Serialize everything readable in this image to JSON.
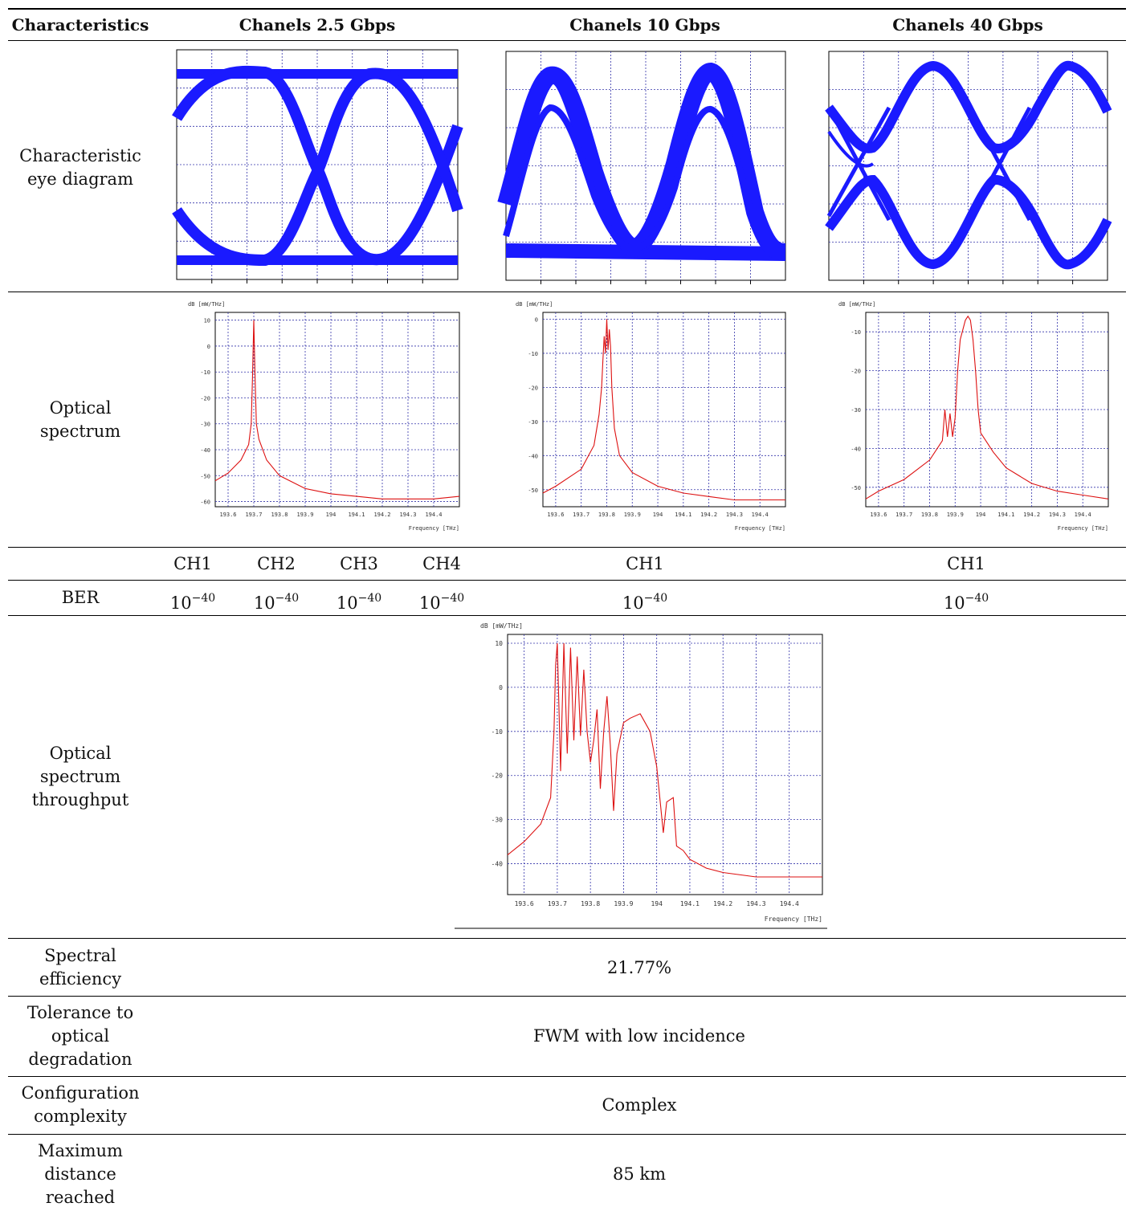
{
  "table": {
    "headers": {
      "characteristics": "Characteristics",
      "col_2_5": "Chanels 2.5 Gbps",
      "col_10": "Chanels 10 Gbps",
      "col_40": "Chanels 40 Gbps"
    },
    "rows": {
      "eye": "Characteristic\neye diagram",
      "spectrum": "Optical\nspectrum",
      "ber": "BER",
      "throughput": "Optical\nspectrum\nthroughput",
      "efficiency": "Spectral\nefficiency",
      "tolerance": "Tolerance to\noptical\ndegradation",
      "complexity": "Configuration\ncomplexity",
      "distance": "Maximum\ndistance\nreached"
    },
    "channels": [
      "CH1",
      "CH2",
      "CH3",
      "CH4",
      "CH1",
      "CH1"
    ],
    "ber_base": "10",
    "ber_exponent": "−40",
    "values": {
      "efficiency": "21.77%",
      "tolerance": "FWM with low incidence",
      "complexity": "Complex",
      "distance": "85 km"
    }
  },
  "colors": {
    "eye": "#1a1aff",
    "spectrum": "#dd1111",
    "grid": "#3333aa"
  },
  "chart_data": [
    {
      "type": "line",
      "name_key": "spec-2-5",
      "ylabel": "dB [mW/THz]",
      "xlabel": "Frequency [THz]",
      "xlim": [
        193.55,
        194.5
      ],
      "ylim": [
        -62,
        13
      ],
      "xticks": [
        "193.6",
        "193.7",
        "193.8",
        "193.9",
        "194",
        "194.1",
        "194.2",
        "194.3",
        "194.4"
      ],
      "xtick_values": [
        193.6,
        193.7,
        193.8,
        193.9,
        194.0,
        194.1,
        194.2,
        194.3,
        194.4
      ],
      "yticks": [
        "10",
        "0",
        "-10",
        "-20",
        "-30",
        "-40",
        "-50",
        "-60"
      ],
      "ytick_values": [
        10,
        0,
        -10,
        -20,
        -30,
        -40,
        -50,
        -60
      ],
      "x": [
        193.55,
        193.6,
        193.65,
        193.68,
        193.69,
        193.695,
        193.7,
        193.705,
        193.71,
        193.72,
        193.75,
        193.8,
        193.9,
        194.0,
        194.1,
        194.2,
        194.3,
        194.4,
        194.5
      ],
      "y": [
        -52,
        -49,
        -44,
        -38,
        -30,
        -12,
        10,
        -12,
        -30,
        -36,
        -44,
        -50,
        -55,
        -57,
        -58,
        -59,
        -59,
        -59,
        -58
      ]
    },
    {
      "type": "line",
      "name_key": "spec-10",
      "ylabel": "dB [mW/THz]",
      "xlabel": "Frequency [THz]",
      "xlim": [
        193.55,
        194.5
      ],
      "ylim": [
        -55,
        2
      ],
      "xticks": [
        "193.6",
        "193.7",
        "193.8",
        "193.9",
        "194",
        "194.1",
        "194.2",
        "194.3",
        "194.4"
      ],
      "xtick_values": [
        193.6,
        193.7,
        193.8,
        193.9,
        194.0,
        194.1,
        194.2,
        194.3,
        194.4
      ],
      "yticks": [
        "0",
        "-10",
        "-20",
        "-30",
        "-40",
        "-50"
      ],
      "ytick_values": [
        0,
        -10,
        -20,
        -30,
        -40,
        -50
      ],
      "x": [
        193.55,
        193.6,
        193.7,
        193.75,
        193.77,
        193.78,
        193.785,
        193.79,
        193.795,
        193.8,
        193.805,
        193.81,
        193.815,
        193.82,
        193.83,
        193.85,
        193.9,
        194.0,
        194.1,
        194.2,
        194.3,
        194.4,
        194.5
      ],
      "y": [
        -51,
        -49,
        -44,
        -37,
        -28,
        -20,
        -12,
        -5,
        -10,
        0,
        -9,
        -3,
        -8,
        -20,
        -32,
        -40,
        -45,
        -49,
        -51,
        -52,
        -53,
        -53,
        -53
      ]
    },
    {
      "type": "line",
      "name_key": "spec-40",
      "ylabel": "dB [mW/THz]",
      "xlabel": "Frequency [THz]",
      "xlim": [
        193.55,
        194.5
      ],
      "ylim": [
        -55,
        -5
      ],
      "xticks": [
        "193.6",
        "193.7",
        "193.8",
        "193.9",
        "194",
        "194.1",
        "194.2",
        "194.3",
        "194.4"
      ],
      "xtick_values": [
        193.6,
        193.7,
        193.8,
        193.9,
        194.0,
        194.1,
        194.2,
        194.3,
        194.4
      ],
      "yticks": [
        "-10",
        "-20",
        "-30",
        "-40",
        "-50"
      ],
      "ytick_values": [
        -10,
        -20,
        -30,
        -40,
        -50
      ],
      "x": [
        193.55,
        193.6,
        193.7,
        193.8,
        193.85,
        193.86,
        193.87,
        193.88,
        193.89,
        193.9,
        193.91,
        193.92,
        193.94,
        193.95,
        193.96,
        193.97,
        193.98,
        193.99,
        194.0,
        194.05,
        194.1,
        194.2,
        194.3,
        194.4,
        194.5
      ],
      "y": [
        -53,
        -51,
        -48,
        -43,
        -38,
        -30,
        -37,
        -31,
        -37,
        -32,
        -20,
        -12,
        -7,
        -6,
        -7,
        -12,
        -20,
        -30,
        -36,
        -41,
        -45,
        -49,
        -51,
        -52,
        -53
      ]
    },
    {
      "type": "line",
      "name_key": "spec-total",
      "ylabel": "dB [mW/THz]",
      "xlabel": "Frequency [THz]",
      "xlim": [
        193.55,
        194.5
      ],
      "ylim": [
        -47,
        12
      ],
      "xticks": [
        "193.6",
        "193.7",
        "193.8",
        "193.9",
        "194",
        "194.1",
        "194.2",
        "194.3",
        "194.4"
      ],
      "xtick_values": [
        193.6,
        193.7,
        193.8,
        193.9,
        194.0,
        194.1,
        194.2,
        194.3,
        194.4
      ],
      "yticks": [
        "10",
        "0",
        "-10",
        "-20",
        "-30",
        "-40"
      ],
      "ytick_values": [
        10,
        0,
        -10,
        -20,
        -30,
        -40
      ],
      "x": [
        193.55,
        193.6,
        193.65,
        193.68,
        193.69,
        193.695,
        193.7,
        193.71,
        193.72,
        193.73,
        193.74,
        193.75,
        193.76,
        193.77,
        193.78,
        193.79,
        193.8,
        193.81,
        193.82,
        193.83,
        193.84,
        193.85,
        193.86,
        193.87,
        193.88,
        193.9,
        193.92,
        193.95,
        193.98,
        194.0,
        194.02,
        194.03,
        194.05,
        194.06,
        194.08,
        194.1,
        194.15,
        194.2,
        194.3,
        194.4,
        194.5
      ],
      "y": [
        -38,
        -35,
        -31,
        -25,
        -10,
        5,
        10,
        -19,
        10,
        -15,
        9,
        -12,
        7,
        -11,
        4,
        -10,
        -17,
        -12,
        -5,
        -23,
        -10,
        -2,
        -13,
        -28,
        -15,
        -8,
        -7,
        -6,
        -10,
        -18,
        -33,
        -26,
        -25,
        -36,
        -37,
        -39,
        -41,
        -42,
        -43,
        -43,
        -43
      ]
    }
  ]
}
